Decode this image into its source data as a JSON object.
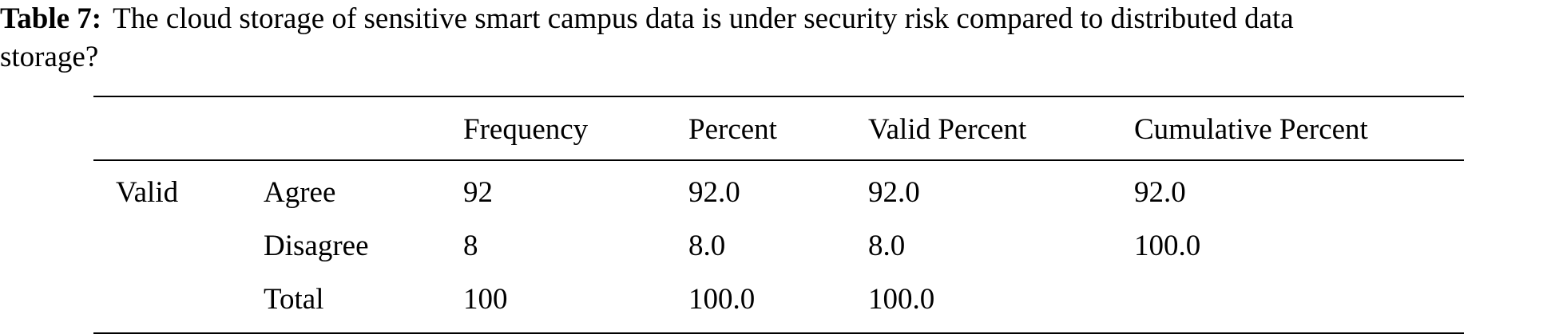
{
  "caption": {
    "label": "Table 7:",
    "line1": "The cloud storage of sensitive smart campus data is under security risk compared to distributed data",
    "line2": "storage?"
  },
  "table": {
    "headers": [
      "",
      "",
      "Frequency",
      "Percent",
      "Valid Percent",
      "Cumulative Percent"
    ],
    "rows": [
      [
        "Valid",
        "Agree",
        "92",
        "92.0",
        "92.0",
        "92.0"
      ],
      [
        "",
        "Disagree",
        "8",
        "8.0",
        "8.0",
        "100.0"
      ],
      [
        "",
        "Total",
        "100",
        "100.0",
        "100.0",
        ""
      ]
    ]
  }
}
